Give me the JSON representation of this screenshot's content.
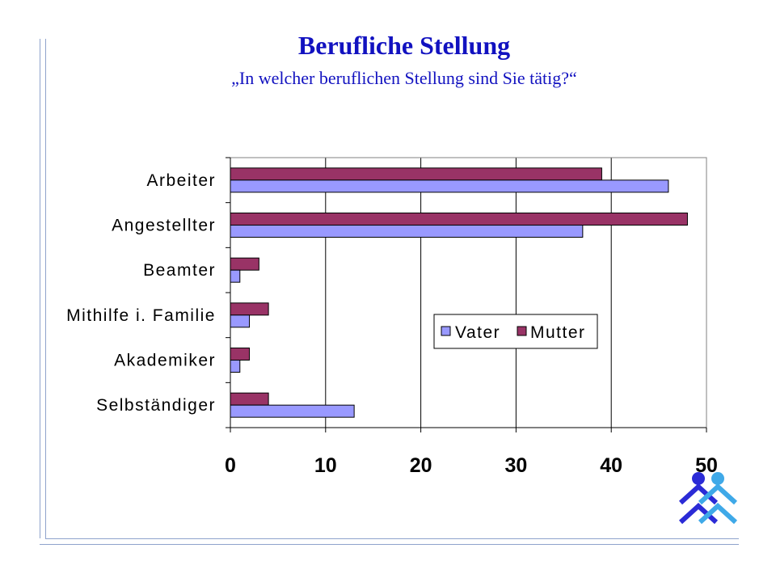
{
  "header": {
    "title": "Berufliche Stellung",
    "subtitle": "„In welcher beruflichen Stellung sind Sie tätig?“"
  },
  "colors": {
    "frame": "#8fa3cc",
    "title": "#1212c0",
    "vater": "#9999ff",
    "mutter": "#993366",
    "logo_dark": "#2b2bd6",
    "logo_light": "#3fa9e8"
  },
  "logo": {
    "icon": "family-figures-logo-icon"
  },
  "chart_data": {
    "type": "bar",
    "orientation": "horizontal",
    "title": "Berufliche Stellung",
    "subtitle": "„In welcher beruflichen Stellung sind Sie tätig?“",
    "categories": [
      "Arbeiter",
      "Angestellter",
      "Beamter",
      "Mithilfe i. Familie",
      "Akademiker",
      "Selbständiger"
    ],
    "series": [
      {
        "name": "Vater",
        "color": "#9999ff",
        "values": [
          46,
          37,
          1,
          2,
          1,
          13
        ]
      },
      {
        "name": "Mutter",
        "color": "#993366",
        "values": [
          39,
          48,
          3,
          4,
          2,
          4
        ]
      }
    ],
    "xlim": [
      0,
      50
    ],
    "xticks": [
      0,
      10,
      20,
      30,
      40,
      50
    ],
    "grid": "vertical",
    "legend": "center-right"
  }
}
